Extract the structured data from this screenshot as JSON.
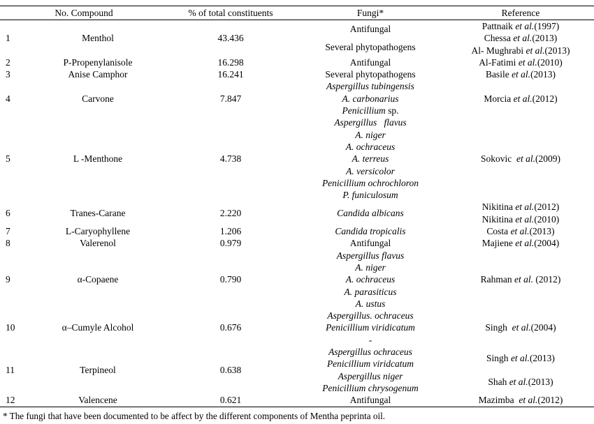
{
  "table": {
    "headers": {
      "no_compound": "No. Compound",
      "pct": "% of total constituents",
      "fungi": "Fungi*",
      "reference": "Reference"
    },
    "rows": [
      {
        "no": "1",
        "compound": "Menthol",
        "percent": "43.436",
        "fungi": [
          "Antifungal",
          "Several phytopathogens"
        ],
        "references": [
          "Pattnaik *et al.*(1997)",
          "Chessa *et al.*(2013)",
          "Al- Mughrabi *et al.*(2013)"
        ]
      },
      {
        "no": "2",
        "compound": "P-Propenylanisole",
        "percent": "16.298",
        "fungi": [
          "Antifungal"
        ],
        "references": [
          "Al-Fatimi *et al.*(2010)"
        ]
      },
      {
        "no": "3",
        "compound": "Anise Camphor",
        "percent": "16.241",
        "fungi": [
          "Several phytopathogens"
        ],
        "references": [
          "Basile *et al.*(2013)"
        ]
      },
      {
        "no": "4",
        "compound": "Carvone",
        "percent": "7.847",
        "fungi": [
          "*Aspergillus tubingensis*",
          "*A. carbonarius*",
          "*Penicillium* sp."
        ],
        "references": [
          "Morcia *et al.*(2012)"
        ]
      },
      {
        "no": "5",
        "compound": "L -Menthone",
        "percent": "4.738",
        "fungi": [
          "*Aspergillus   flavus*",
          "*A. niger*",
          "*A. ochraceus*",
          "*A. terreus*",
          "*A. versicolor*",
          "*Penicillium ochrochloron*",
          "*P. funiculosum*"
        ],
        "references": [
          "Sokovic  *et al.*(2009)"
        ]
      },
      {
        "no": "6",
        "compound": "Tranes-Carane",
        "percent": "2.220",
        "fungi": [
          "*Candida albicans*"
        ],
        "references": [
          "Nikitina *et al.*(2012)",
          "Nikitina *et al.*(2010)"
        ]
      },
      {
        "no": "7",
        "compound": "L-Caryophyllene",
        "percent": "1.206",
        "fungi": [
          "*Candida tropicalis*"
        ],
        "references": [
          "Costa *et al.*(2013)"
        ]
      },
      {
        "no": "8",
        "compound": "Valerenol",
        "percent": "0.979",
        "fungi": [
          "Antifungal"
        ],
        "references": [
          "Majiene *et al.*(2004)"
        ]
      },
      {
        "no": "9",
        "compound": "α-Copaene",
        "percent": "0.790",
        "fungi": [
          "*Aspergillus flavus*",
          "*A. niger*",
          "*A. ochraceus*",
          "*A. parasiticus*",
          "*A. ustus*"
        ],
        "references": [
          "Rahman *et al.* (2012)"
        ]
      },
      {
        "no": "10",
        "compound": "α–Cumyle Alcohol",
        "percent": "0.676",
        "fungi": [
          "*Aspergillus. ochraceus*",
          "*Penicillium viridicatum*",
          "-"
        ],
        "references": [
          "Singh  *et al.*(2004)"
        ]
      },
      {
        "no": "11",
        "compound": "Terpineol",
        "percent": "0.638",
        "fungi": [
          "*Aspergillus ochraceus*",
          "*Penicillium viridcatum*",
          "*Aspergillus niger*",
          "*Penicillium chrysogenum*"
        ],
        "references": [
          "Singh *et al.*(2013)",
          "Shah *et al.*(2013)"
        ]
      },
      {
        "no": "12",
        "compound": "Valencene",
        "percent": "0.621",
        "fungi": [
          "Antifungal"
        ],
        "references": [
          "Mazimba  *et al.*(2012)"
        ]
      }
    ]
  },
  "footnote": "* The fungi that have been documented to be affect by the different components of Mentha peprinta oil."
}
